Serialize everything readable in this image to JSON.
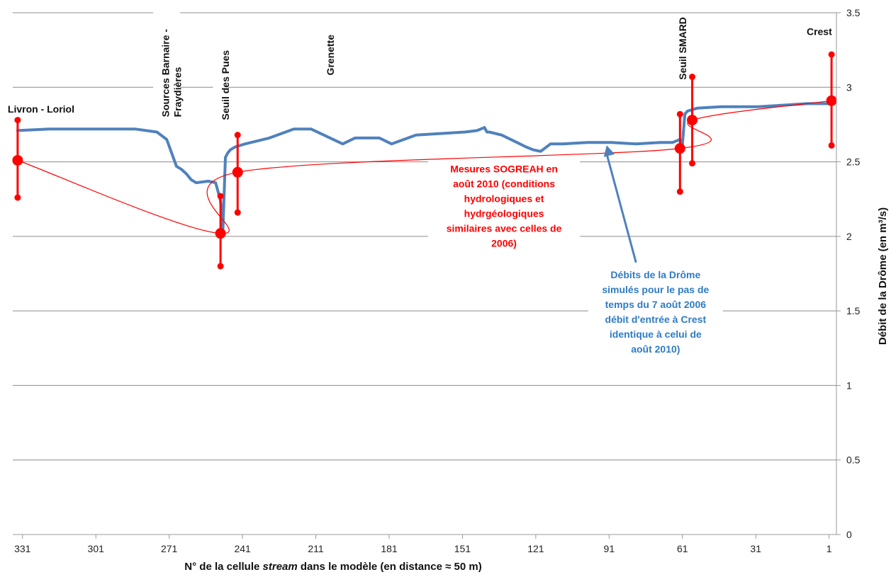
{
  "chart_data": {
    "type": "line",
    "xlabel_parts": [
      "N° de la cellule ",
      "stream",
      " dans le modèle (en distance ≈ 50 m)"
    ],
    "ylabel": "Débit de la Drôme (en m³/s)",
    "xlim": [
      335,
      -2
    ],
    "ylim": [
      0,
      3.5
    ],
    "x_ticks": [
      331,
      301,
      271,
      241,
      211,
      181,
      151,
      121,
      91,
      61,
      31,
      1
    ],
    "y_ticks": [
      "0",
      "0.5",
      "1",
      "1.5",
      "2",
      "2.5",
      "3",
      "3.5"
    ],
    "grid": true,
    "series": [
      {
        "style": "simulated",
        "color": "#4f81bd",
        "x": [
          333,
          320,
          300,
          285,
          276,
          272,
          268,
          266,
          264,
          262,
          260,
          255,
          252,
          250,
          249,
          248,
          247,
          246,
          245,
          244,
          240,
          230,
          220,
          213,
          200,
          195,
          185,
          180,
          170,
          160,
          150,
          145,
          142,
          141,
          140,
          135,
          130,
          125,
          122,
          119,
          115,
          110,
          100,
          90,
          80,
          70,
          65,
          62,
          61,
          60,
          59,
          55,
          45,
          30,
          20,
          10,
          0
        ],
        "y": [
          2.71,
          2.72,
          2.72,
          2.72,
          2.7,
          2.65,
          2.47,
          2.45,
          2.42,
          2.38,
          2.36,
          2.37,
          2.36,
          2.24,
          2.05,
          2.53,
          2.56,
          2.58,
          2.59,
          2.6,
          2.62,
          2.66,
          2.72,
          2.72,
          2.62,
          2.66,
          2.66,
          2.62,
          2.68,
          2.69,
          2.7,
          2.71,
          2.73,
          2.7,
          2.7,
          2.68,
          2.64,
          2.6,
          2.58,
          2.57,
          2.62,
          2.62,
          2.63,
          2.63,
          2.62,
          2.63,
          2.63,
          2.65,
          2.62,
          2.82,
          2.84,
          2.86,
          2.87,
          2.87,
          2.88,
          2.89,
          2.89
        ]
      },
      {
        "name": "Mesures SOGREAH",
        "color": "#ff0000",
        "points": [
          {
            "x": 333,
            "y": 2.51,
            "low": 2.26,
            "high": 2.78
          },
          {
            "x": 250,
            "y": 2.02,
            "low": 1.8,
            "high": 2.27
          },
          {
            "x": 243,
            "y": 2.43,
            "low": 2.16,
            "high": 2.68
          },
          {
            "x": 62,
            "y": 2.59,
            "low": 2.3,
            "high": 2.82
          },
          {
            "x": 57,
            "y": 2.78,
            "low": 2.49,
            "high": 3.07
          },
          {
            "x": 0,
            "y": 2.91,
            "low": 2.61,
            "high": 3.22
          }
        ]
      }
    ],
    "site_labels": [
      {
        "lines": [
          "Livron - Loriol"
        ],
        "x": 333,
        "y": 2.83,
        "orientation": "horizontal"
      },
      {
        "lines": [
          "Sources Barnaire -",
          "Fraydières"
        ],
        "x": 270,
        "y": 2.8,
        "orientation": "vertical"
      },
      {
        "lines": [
          "Seuil des Pues"
        ],
        "x": 248,
        "y": 2.78,
        "orientation": "vertical"
      },
      {
        "lines": [
          "Grenette"
        ],
        "x": 205,
        "y": 3.08,
        "orientation": "vertical"
      },
      {
        "lines": [
          "Seuil SMARD"
        ],
        "x": 61,
        "y": 3.05,
        "orientation": "vertical"
      },
      {
        "lines": [
          "Crest"
        ],
        "x": 5,
        "y": 3.35,
        "orientation": "horizontal"
      }
    ],
    "annotations": [
      {
        "style": "red",
        "color": "#ff0000",
        "lines": [
          "Mesures SOGREAH en",
          "août 2010  (conditions",
          "hydrologiques et",
          "hydrgéologiques",
          "similaires avec celles de",
          "2006)"
        ],
        "x": 134,
        "y": 2.43
      },
      {
        "style": "blue",
        "color": "#2e7bc4",
        "lines": [
          "Débits de la Drôme",
          "simulés pour le pas de",
          "temps du 7 août 2006",
          "débit d'entrée à Crest",
          "identique à celui de",
          "août 2010)"
        ],
        "x": 72,
        "y": 1.72,
        "arrow_from": {
          "x": 80,
          "y": 1.72
        },
        "arrow_to": {
          "x": 92,
          "y": 2.63
        }
      }
    ]
  }
}
